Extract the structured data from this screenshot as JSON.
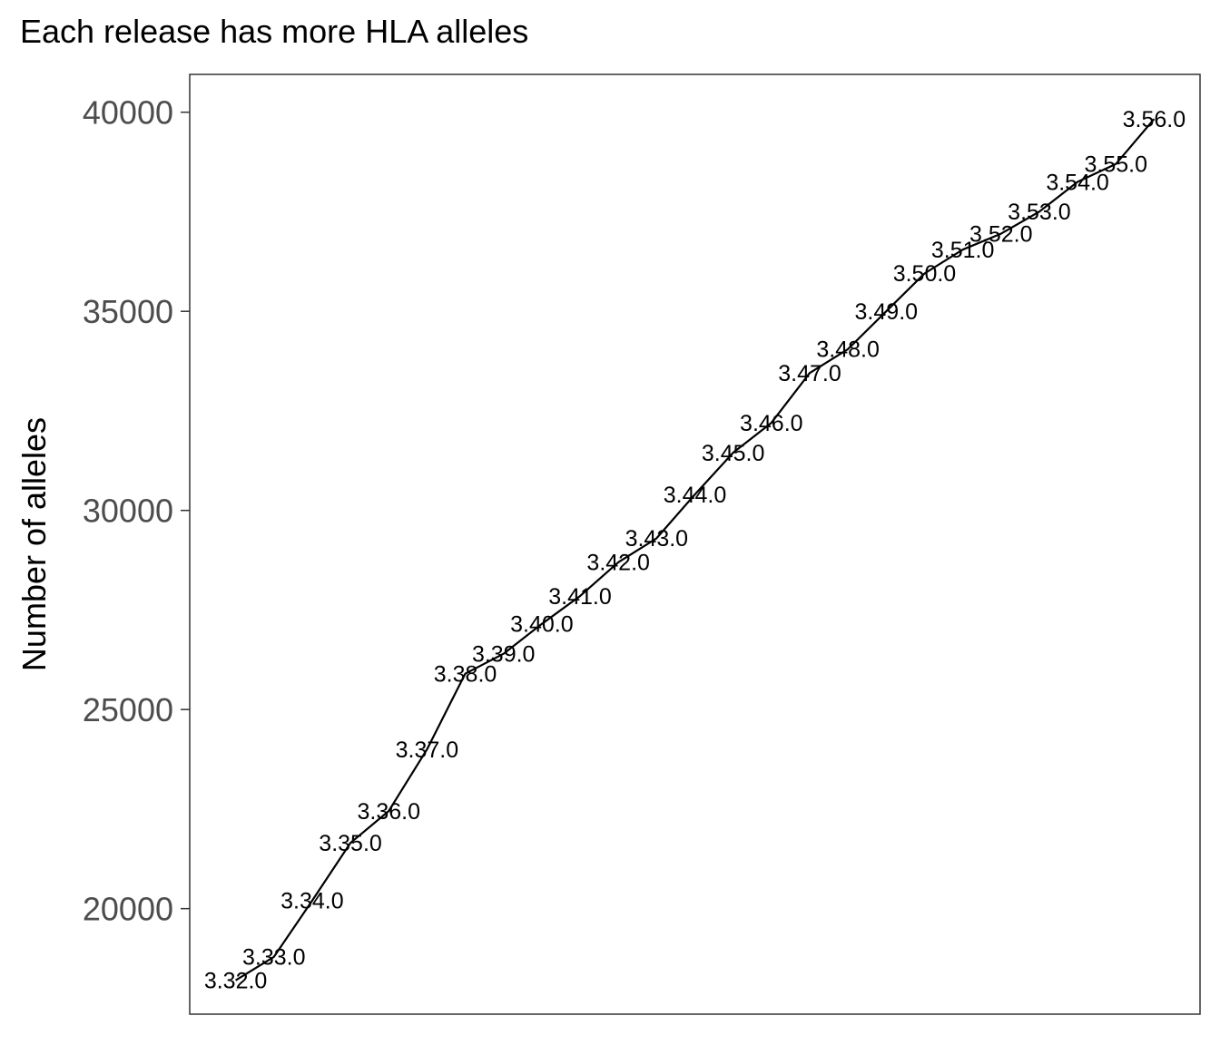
{
  "chart_data": {
    "type": "line",
    "title": "Each release has more HLA alleles",
    "xlabel": "",
    "ylabel": "Number of alleles",
    "ylim": [
      17350,
      40950
    ],
    "y_ticks": [
      20000,
      25000,
      30000,
      35000,
      40000
    ],
    "grid": false,
    "legend": "none",
    "line_color": "#000000",
    "points": [
      {
        "label": "3.32.0",
        "x": 1,
        "y": 18200
      },
      {
        "label": "3.33.0",
        "x": 2,
        "y": 18790
      },
      {
        "label": "3.34.0",
        "x": 3,
        "y": 20200
      },
      {
        "label": "3.35.0",
        "x": 4,
        "y": 21650
      },
      {
        "label": "3.36.0",
        "x": 5,
        "y": 22450
      },
      {
        "label": "3.37.0",
        "x": 6,
        "y": 24000
      },
      {
        "label": "3.38.0",
        "x": 7,
        "y": 25900
      },
      {
        "label": "3.39.0",
        "x": 8,
        "y": 26400
      },
      {
        "label": "3.40.0",
        "x": 9,
        "y": 27150
      },
      {
        "label": "3.41.0",
        "x": 10,
        "y": 27850
      },
      {
        "label": "3.42.0",
        "x": 11,
        "y": 28700
      },
      {
        "label": "3.43.0",
        "x": 12,
        "y": 29300
      },
      {
        "label": "3.44.0",
        "x": 13,
        "y": 30400
      },
      {
        "label": "3.45.0",
        "x": 14,
        "y": 31450
      },
      {
        "label": "3.46.0",
        "x": 15,
        "y": 32200
      },
      {
        "label": "3.47.0",
        "x": 16,
        "y": 33450
      },
      {
        "label": "3.48.0",
        "x": 17,
        "y": 34050
      },
      {
        "label": "3.49.0",
        "x": 18,
        "y": 35000
      },
      {
        "label": "3.50.0",
        "x": 19,
        "y": 35950
      },
      {
        "label": "3.51.0",
        "x": 20,
        "y": 36550
      },
      {
        "label": "3.52.0",
        "x": 21,
        "y": 36950
      },
      {
        "label": "3.53.0",
        "x": 22,
        "y": 37500
      },
      {
        "label": "3.54.0",
        "x": 23,
        "y": 38250
      },
      {
        "label": "3.55.0",
        "x": 24,
        "y": 38700
      },
      {
        "label": "3.56.0",
        "x": 25,
        "y": 39830
      }
    ]
  }
}
